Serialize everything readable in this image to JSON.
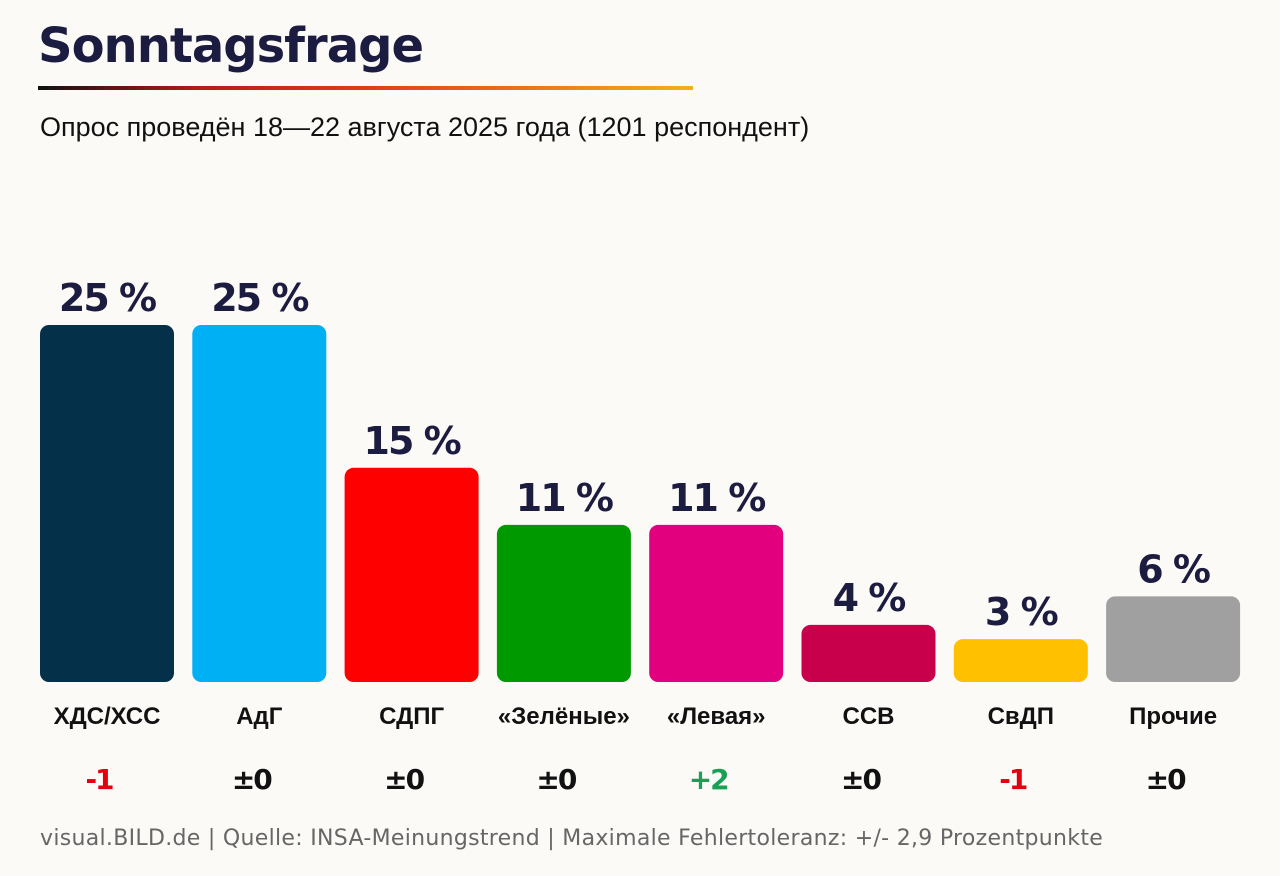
{
  "header": {
    "title": "Sonntagsfrage",
    "subtitle": "Опрос проведён 18—22 августа 2025 года (1201 респондент)"
  },
  "footer": {
    "source": "visual.BILD.de | Quelle: INSA-Meinungstrend | Maximale Fehlertoleranz: +/- 2,9 Prozentpunkte"
  },
  "chart_data": {
    "type": "bar",
    "title": "Sonntagsfrage",
    "subtitle": "Опрос проведён 18—22 августа 2025 года (1201 респондент)",
    "xlabel": "",
    "ylabel": "",
    "ylim": [
      0,
      25
    ],
    "grid": false,
    "categories": [
      "ХДС/ХСС",
      "АдГ",
      "СДПГ",
      "«Зелёные»",
      "«Левая»",
      "ССВ",
      "СвДП",
      "Прочие"
    ],
    "values": [
      25,
      25,
      15,
      11,
      11,
      4,
      3,
      6
    ],
    "value_labels": [
      "25 %",
      "25 %",
      "15 %",
      "11 %",
      "11 %",
      "4 %",
      "3 %",
      "6 %"
    ],
    "changes": [
      "-1",
      "±0",
      "±0",
      "±0",
      "+2",
      "±0",
      "-1",
      "±0"
    ],
    "colors": [
      "#04304a",
      "#00b0f5",
      "#fe0000",
      "#009a00",
      "#e2007f",
      "#c8004b",
      "#ffc000",
      "#a0a0a0"
    ],
    "change_colors": {
      "negative": "#e3000f",
      "neutral": "#111111",
      "positive": "#1aa055"
    }
  }
}
